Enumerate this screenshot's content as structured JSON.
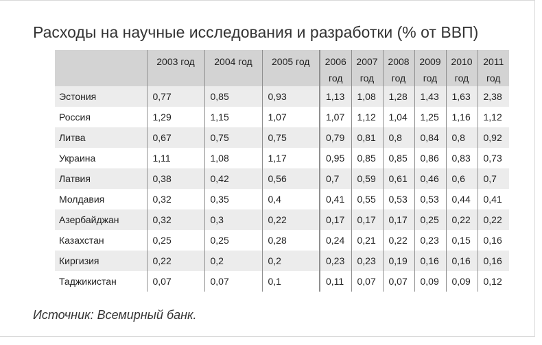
{
  "title": "Расходы на научные исследования и разработки (% от ВВП)",
  "source": "Источник: Всемирный банк.",
  "chart_data": {
    "type": "table",
    "title": "Расходы на научные исследования и разработки (% от ВВП)",
    "columns": [
      {
        "label": "2003 год",
        "wide": true
      },
      {
        "label": "2004 год",
        "wide": true
      },
      {
        "label": "2005 год",
        "wide": true
      },
      {
        "label": "2006 год",
        "wide": false
      },
      {
        "label": "2007 год",
        "wide": false
      },
      {
        "label": "2008 год",
        "wide": false
      },
      {
        "label": "2009 год",
        "wide": false
      },
      {
        "label": "2010 год",
        "wide": false
      },
      {
        "label": "2011 год",
        "wide": false
      }
    ],
    "rows": [
      {
        "label": "Эстония",
        "values": [
          "0,77",
          "0,85",
          "0,93",
          "1,13",
          "1,08",
          "1,28",
          "1,43",
          "1,63",
          "2,38"
        ]
      },
      {
        "label": "Россия",
        "values": [
          "1,29",
          "1,15",
          "1,07",
          "1,07",
          "1,12",
          "1,04",
          "1,25",
          "1,16",
          "1,12"
        ]
      },
      {
        "label": "Литва",
        "values": [
          "0,67",
          "0,75",
          "0,75",
          "0,79",
          "0,81",
          "0,8",
          "0,84",
          "0,8",
          "0,92"
        ]
      },
      {
        "label": "Украина",
        "values": [
          "1,11",
          "1,08",
          "1,17",
          "0,95",
          "0,85",
          "0,85",
          "0,86",
          "0,83",
          "0,73"
        ]
      },
      {
        "label": "Латвия",
        "values": [
          "0,38",
          "0,42",
          "0,56",
          "0,7",
          "0,59",
          "0,61",
          "0,46",
          "0,6",
          "0,7"
        ]
      },
      {
        "label": "Молдавия",
        "values": [
          "0,32",
          "0,35",
          "0,4",
          "0,41",
          "0,55",
          "0,53",
          "0,53",
          "0,44",
          "0,41"
        ]
      },
      {
        "label": "Азербайджан",
        "values": [
          "0,32",
          "0,3",
          "0,22",
          "0,17",
          "0,17",
          "0,17",
          "0,25",
          "0,22",
          "0,22"
        ]
      },
      {
        "label": "Казахстан",
        "values": [
          "0,25",
          "0,25",
          "0,28",
          "0,24",
          "0,21",
          "0,22",
          "0,23",
          "0,15",
          "0,16"
        ]
      },
      {
        "label": "Киргизия",
        "values": [
          "0,22",
          "0,2",
          "0,2",
          "0,23",
          "0,23",
          "0,19",
          "0,16",
          "0,16",
          "0,16"
        ]
      },
      {
        "label": "Таджикистан",
        "values": [
          "0,07",
          "0,07",
          "0,1",
          "0,11",
          "0,07",
          "0,07",
          "0,09",
          "0,09",
          "0,12"
        ]
      }
    ]
  }
}
